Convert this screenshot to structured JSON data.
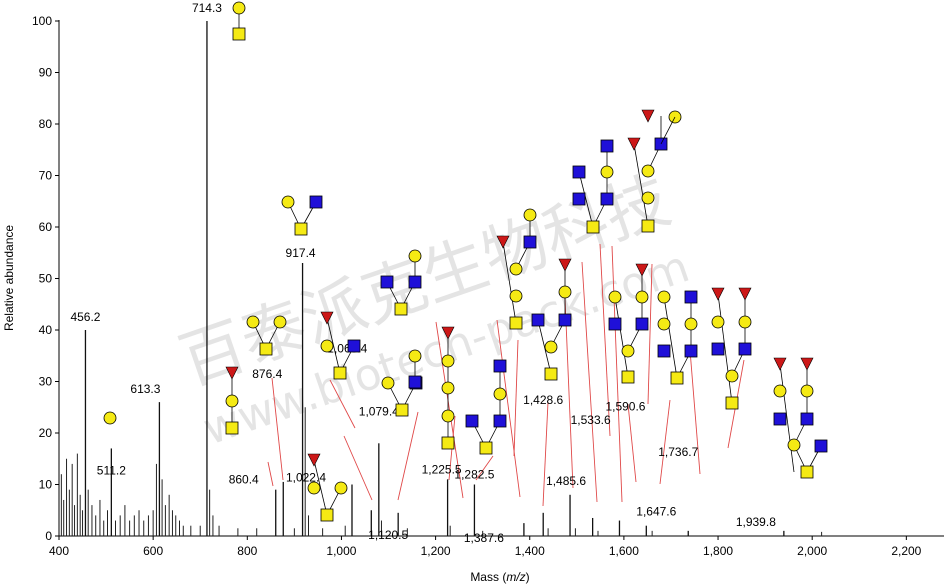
{
  "chart_data": {
    "type": "bar",
    "title": "",
    "xlabel": "Mass",
    "xlabel_unit": "m/z",
    "ylabel": "Relative abundance",
    "xlim": [
      400,
      2280
    ],
    "ylim": [
      0,
      100
    ],
    "xticks": [
      400,
      600,
      800,
      1000,
      1200,
      1400,
      1600,
      1800,
      2000,
      2200
    ],
    "xtick_labels": [
      "400",
      "600",
      "800",
      "1,000",
      "1,200",
      "1,400",
      "1,600",
      "1,800",
      "2,000",
      "2,200"
    ],
    "yticks": [
      0,
      10,
      20,
      30,
      40,
      50,
      60,
      70,
      80,
      90,
      100
    ],
    "peaks": [
      {
        "mz": 456.2,
        "label": "456.2",
        "intensity": 40
      },
      {
        "mz": 511.2,
        "label": "511.2",
        "intensity": 17
      },
      {
        "mz": 613.3,
        "label": "613.3",
        "intensity": 26
      },
      {
        "mz": 714.3,
        "label": "714.3",
        "intensity": 100
      },
      {
        "mz": 860.4,
        "label": "860.4",
        "intensity": 9
      },
      {
        "mz": 876.4,
        "label": "876.4",
        "intensity": 10.5
      },
      {
        "mz": 917.4,
        "label": "917.4",
        "intensity": 53
      },
      {
        "mz": 1022.4,
        "label": "1,022.4",
        "intensity": 10
      },
      {
        "mz": 1063.4,
        "label": "1,063.4",
        "intensity": 5
      },
      {
        "mz": 1079.4,
        "label": "1,079.4",
        "intensity": 18
      },
      {
        "mz": 1120.5,
        "label": "1,120.5",
        "intensity": 4.5
      },
      {
        "mz": 1225.5,
        "label": "1,225.5",
        "intensity": 11
      },
      {
        "mz": 1282.5,
        "label": "1,282.5",
        "intensity": 10
      },
      {
        "mz": 1387.6,
        "label": "1,387.6",
        "intensity": 2.5
      },
      {
        "mz": 1428.6,
        "label": "1,428.6",
        "intensity": 4.5
      },
      {
        "mz": 1485.6,
        "label": "1,485.6",
        "intensity": 8
      },
      {
        "mz": 1533.6,
        "label": "1,533.6",
        "intensity": 3.5
      },
      {
        "mz": 1590.6,
        "label": "1,590.6",
        "intensity": 3
      },
      {
        "mz": 1647.6,
        "label": "1,647.6",
        "intensity": 2
      },
      {
        "mz": 1736.7,
        "label": "1,736.7",
        "intensity": 1
      },
      {
        "mz": 1939.8,
        "label": "1,939.8",
        "intensity": 1
      }
    ],
    "noise": [
      {
        "mz": 405,
        "intensity": 12
      },
      {
        "mz": 410,
        "intensity": 7
      },
      {
        "mz": 416,
        "intensity": 15
      },
      {
        "mz": 422,
        "intensity": 9
      },
      {
        "mz": 428,
        "intensity": 14
      },
      {
        "mz": 433,
        "intensity": 6
      },
      {
        "mz": 439,
        "intensity": 16
      },
      {
        "mz": 445,
        "intensity": 8
      },
      {
        "mz": 450,
        "intensity": 5
      },
      {
        "mz": 462,
        "intensity": 9
      },
      {
        "mz": 470,
        "intensity": 6
      },
      {
        "mz": 478,
        "intensity": 4
      },
      {
        "mz": 487,
        "intensity": 7
      },
      {
        "mz": 495,
        "intensity": 3
      },
      {
        "mz": 503,
        "intensity": 5
      },
      {
        "mz": 520,
        "intensity": 3
      },
      {
        "mz": 530,
        "intensity": 4
      },
      {
        "mz": 540,
        "intensity": 6
      },
      {
        "mz": 550,
        "intensity": 3
      },
      {
        "mz": 560,
        "intensity": 4
      },
      {
        "mz": 570,
        "intensity": 5
      },
      {
        "mz": 580,
        "intensity": 3
      },
      {
        "mz": 590,
        "intensity": 4
      },
      {
        "mz": 600,
        "intensity": 5
      },
      {
        "mz": 607,
        "intensity": 14
      },
      {
        "mz": 619,
        "intensity": 11
      },
      {
        "mz": 626,
        "intensity": 6
      },
      {
        "mz": 634,
        "intensity": 8
      },
      {
        "mz": 641,
        "intensity": 5
      },
      {
        "mz": 648,
        "intensity": 4
      },
      {
        "mz": 656,
        "intensity": 3
      },
      {
        "mz": 664,
        "intensity": 2
      },
      {
        "mz": 680,
        "intensity": 2
      },
      {
        "mz": 700,
        "intensity": 2
      },
      {
        "mz": 720,
        "intensity": 9
      },
      {
        "mz": 727,
        "intensity": 4
      },
      {
        "mz": 740,
        "intensity": 2
      },
      {
        "mz": 780,
        "intensity": 1.5
      },
      {
        "mz": 820,
        "intensity": 1.5
      },
      {
        "mz": 900,
        "intensity": 1.5
      },
      {
        "mz": 923,
        "intensity": 25
      },
      {
        "mz": 930,
        "intensity": 4
      },
      {
        "mz": 960,
        "intensity": 1.5
      },
      {
        "mz": 1008,
        "intensity": 2
      },
      {
        "mz": 1085,
        "intensity": 3
      },
      {
        "mz": 1140,
        "intensity": 1.5
      },
      {
        "mz": 1231,
        "intensity": 2
      },
      {
        "mz": 1300,
        "intensity": 1
      },
      {
        "mz": 1439,
        "intensity": 1.5
      },
      {
        "mz": 1497,
        "intensity": 1.5
      },
      {
        "mz": 1545,
        "intensity": 1
      },
      {
        "mz": 1660,
        "intensity": 1
      },
      {
        "mz": 2020,
        "intensity": 0.8
      }
    ]
  },
  "watermark": {
    "line1": "百泰派克生物科技",
    "line2": "www.biotech-pack.com"
  },
  "colors": {
    "hexnac": "#f5ea14",
    "hex": "#f5ea14",
    "glcnac": "#1f10d8",
    "fucose": "#cc1818",
    "leader": "#e04848"
  }
}
